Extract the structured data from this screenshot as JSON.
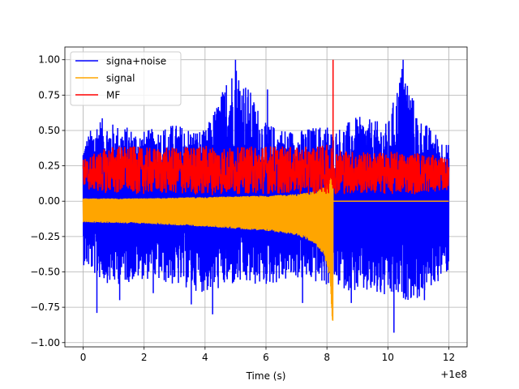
{
  "chart_data": {
    "type": "line",
    "title": "",
    "xlabel": "Time (s)",
    "ylabel": "",
    "x_offset_label": "+1e8",
    "xlim": [
      -0.6,
      12.6
    ],
    "ylim": [
      -1.03,
      1.09
    ],
    "x_ticks": [
      0,
      2,
      4,
      6,
      8,
      10,
      12
    ],
    "x_tick_labels": [
      "0",
      "2",
      "4",
      "6",
      "8",
      "10",
      "12"
    ],
    "y_ticks": [
      -1.0,
      -0.75,
      -0.5,
      -0.25,
      0.0,
      0.25,
      0.5,
      0.75,
      1.0
    ],
    "y_tick_labels": [
      "−1.00",
      "−0.75",
      "−0.50",
      "−0.25",
      "0.00",
      "0.25",
      "0.50",
      "0.75",
      "1.00"
    ],
    "grid": true,
    "legend_position": "top-left",
    "series": [
      {
        "name": "signa+noise",
        "color": "#0000ff",
        "x_range": [
          0,
          12
        ],
        "band_points": [
          {
            "x": 0.0,
            "low": -0.45,
            "high": 0.42
          },
          {
            "x": 0.5,
            "low": -0.55,
            "high": 0.6
          },
          {
            "x": 1.0,
            "low": -0.6,
            "high": 0.55
          },
          {
            "x": 2.0,
            "low": -0.55,
            "high": 0.5
          },
          {
            "x": 3.0,
            "low": -0.6,
            "high": 0.55
          },
          {
            "x": 4.0,
            "low": -0.65,
            "high": 0.5
          },
          {
            "x": 5.0,
            "low": -0.6,
            "high": 1.0
          },
          {
            "x": 6.0,
            "low": -0.6,
            "high": 0.55
          },
          {
            "x": 7.0,
            "low": -0.55,
            "high": 0.5
          },
          {
            "x": 8.0,
            "low": -0.6,
            "high": 0.55
          },
          {
            "x": 8.2,
            "low": -0.6,
            "high": 0.5
          },
          {
            "x": 9.0,
            "low": -0.65,
            "high": 0.6
          },
          {
            "x": 10.0,
            "low": -0.7,
            "high": 0.55
          },
          {
            "x": 10.5,
            "low": -0.7,
            "high": 1.0
          },
          {
            "x": 11.0,
            "low": -0.7,
            "high": 0.6
          },
          {
            "x": 12.0,
            "low": -0.5,
            "high": 0.4
          }
        ],
        "spikes": [
          {
            "x": 0.45,
            "y": -0.79
          },
          {
            "x": 1.2,
            "y": -0.7
          },
          {
            "x": 2.3,
            "y": -0.65
          },
          {
            "x": 3.55,
            "y": -0.73
          },
          {
            "x": 4.25,
            "y": -0.8
          },
          {
            "x": 4.7,
            "y": 0.82
          },
          {
            "x": 5.0,
            "y": 1.0
          },
          {
            "x": 6.05,
            "y": 0.79
          },
          {
            "x": 7.2,
            "y": -0.72
          },
          {
            "x": 8.8,
            "y": -0.72
          },
          {
            "x": 10.2,
            "y": -0.93
          },
          {
            "x": 10.5,
            "y": 1.0
          },
          {
            "x": 11.2,
            "y": -0.7
          }
        ]
      },
      {
        "name": "signal",
        "color": "#ffa500",
        "x_range": [
          0,
          8.2
        ],
        "envelope_points": [
          {
            "x": 0.0,
            "low": -0.15,
            "high": 0.02
          },
          {
            "x": 2.0,
            "low": -0.16,
            "high": 0.02
          },
          {
            "x": 4.0,
            "low": -0.18,
            "high": 0.03
          },
          {
            "x": 6.0,
            "low": -0.21,
            "high": 0.04
          },
          {
            "x": 7.0,
            "low": -0.24,
            "high": 0.05
          },
          {
            "x": 7.6,
            "low": -0.3,
            "high": 0.07
          },
          {
            "x": 7.9,
            "low": -0.38,
            "high": 0.1
          },
          {
            "x": 8.1,
            "low": -0.55,
            "high": 0.2
          },
          {
            "x": 8.18,
            "low": -0.9,
            "high": 0.25
          }
        ],
        "after_merger_value": 0.0
      },
      {
        "name": "MF",
        "color": "#ff0000",
        "x_range": [
          0,
          12
        ],
        "band_points": [
          {
            "x": 0.0,
            "low": 0.08,
            "high": 0.3
          },
          {
            "x": 1.0,
            "low": 0.05,
            "high": 0.4
          },
          {
            "x": 2.0,
            "low": 0.05,
            "high": 0.38
          },
          {
            "x": 3.0,
            "low": 0.05,
            "high": 0.38
          },
          {
            "x": 4.0,
            "low": 0.04,
            "high": 0.4
          },
          {
            "x": 5.0,
            "low": 0.05,
            "high": 0.38
          },
          {
            "x": 6.0,
            "low": 0.05,
            "high": 0.4
          },
          {
            "x": 7.0,
            "low": 0.05,
            "high": 0.38
          },
          {
            "x": 8.0,
            "low": 0.05,
            "high": 0.4
          },
          {
            "x": 9.0,
            "low": 0.05,
            "high": 0.35
          },
          {
            "x": 10.0,
            "low": 0.05,
            "high": 0.35
          },
          {
            "x": 11.0,
            "low": 0.05,
            "high": 0.35
          },
          {
            "x": 12.0,
            "low": 0.08,
            "high": 0.3
          }
        ],
        "peak": {
          "x": 8.2,
          "y": 1.0
        }
      }
    ]
  }
}
